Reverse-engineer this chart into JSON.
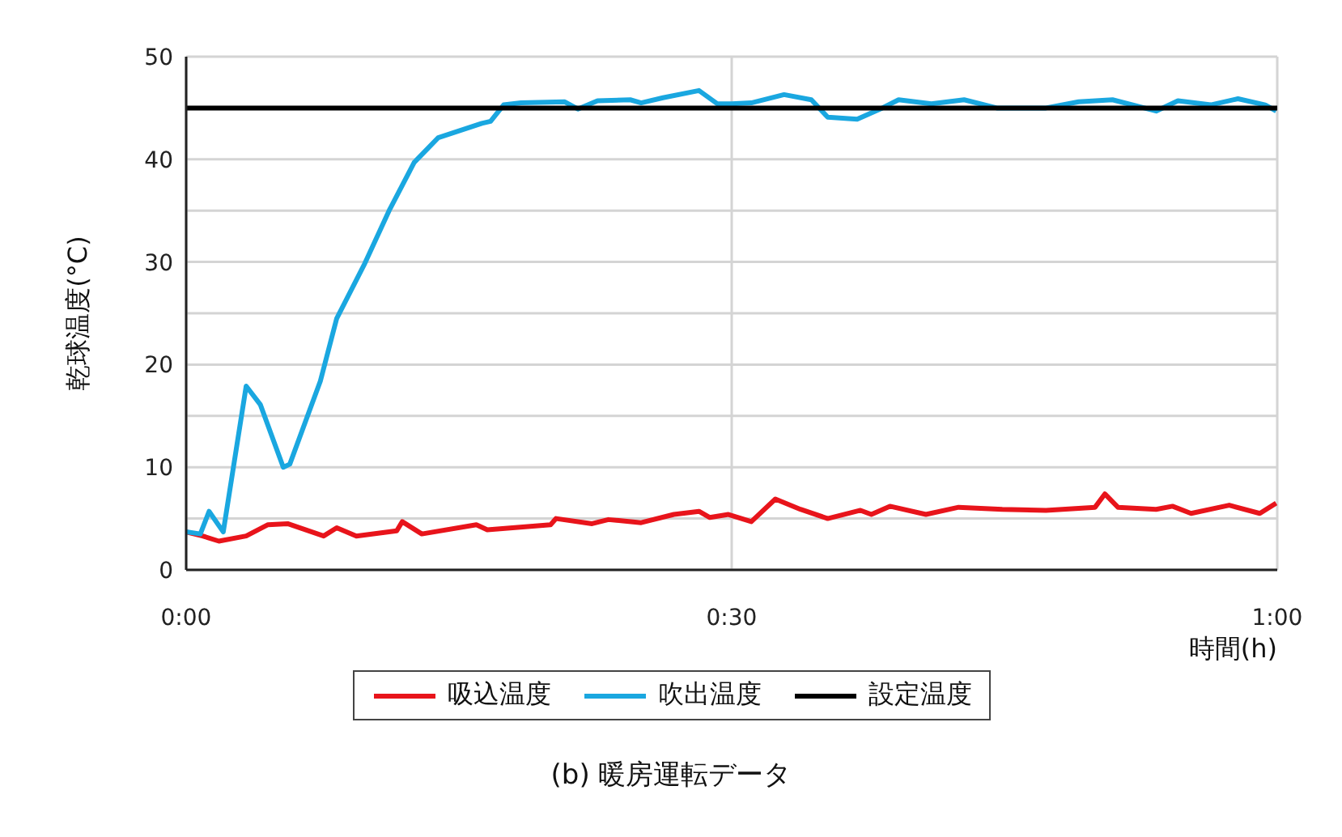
{
  "chart_data": {
    "type": "line",
    "title": "(b) 暖房運転データ",
    "xlabel": "時間(h)",
    "ylabel": "乾球温度(°C)",
    "xlim": [
      0,
      1
    ],
    "xticks": [
      {
        "value": 0,
        "label": "0:00"
      },
      {
        "value": 0.5,
        "label": "0:30"
      },
      {
        "value": 1,
        "label": "1:00"
      }
    ],
    "ylim": [
      0,
      50
    ],
    "yticks": [
      0,
      {
        "value": 5,
        "label": null
      },
      10,
      {
        "value": 15,
        "label": null
      },
      20,
      {
        "value": 25,
        "label": null
      },
      30,
      {
        "value": 35,
        "label": null
      },
      40,
      {
        "value": 45,
        "label": null
      },
      50
    ],
    "grid": true,
    "legend": "bottom",
    "line_style": "solid",
    "marker": "none",
    "series": [
      {
        "name": "吸込温度",
        "color": "#e8141b",
        "x": [
          0,
          0.015,
          0.03,
          0.055,
          0.075,
          0.093,
          0.126,
          0.138,
          0.156,
          0.193,
          0.198,
          0.216,
          0.266,
          0.276,
          0.334,
          0.339,
          0.372,
          0.387,
          0.417,
          0.447,
          0.47,
          0.48,
          0.497,
          0.518,
          0.54,
          0.563,
          0.588,
          0.618,
          0.628,
          0.645,
          0.678,
          0.708,
          0.748,
          0.788,
          0.833,
          0.842,
          0.854,
          0.889,
          0.904,
          0.921,
          0.956,
          0.984,
          0.999
        ],
        "values": [
          3.7,
          3.3,
          2.8,
          3.3,
          4.4,
          4.5,
          3.3,
          4.1,
          3.3,
          3.8,
          4.7,
          3.5,
          4.4,
          3.9,
          4.4,
          5.0,
          4.5,
          4.9,
          4.6,
          5.4,
          5.7,
          5.1,
          5.4,
          4.7,
          6.9,
          5.9,
          5.0,
          5.8,
          5.4,
          6.2,
          5.4,
          6.1,
          5.9,
          5.8,
          6.1,
          7.4,
          6.1,
          5.9,
          6.2,
          5.5,
          6.3,
          5.5,
          6.5
        ]
      },
      {
        "name": "吹出温度",
        "color": "#1aa7e0",
        "x": [
          0,
          0.013,
          0.021,
          0.034,
          0.055,
          0.068,
          0.089,
          0.095,
          0.123,
          0.138,
          0.163,
          0.186,
          0.209,
          0.231,
          0.271,
          0.279,
          0.291,
          0.307,
          0.347,
          0.359,
          0.377,
          0.407,
          0.417,
          0.437,
          0.47,
          0.487,
          0.5,
          0.518,
          0.548,
          0.573,
          0.588,
          0.615,
          0.638,
          0.653,
          0.683,
          0.713,
          0.743,
          0.788,
          0.818,
          0.849,
          0.889,
          0.909,
          0.939,
          0.964,
          0.989,
          0.999
        ],
        "values": [
          3.7,
          3.5,
          5.7,
          3.7,
          17.9,
          16.1,
          10.0,
          10.3,
          18.4,
          24.5,
          29.7,
          35.0,
          39.7,
          42.1,
          43.5,
          43.7,
          45.3,
          45.5,
          45.6,
          44.9,
          45.7,
          45.8,
          45.5,
          46.0,
          46.7,
          45.4,
          45.4,
          45.5,
          46.3,
          45.8,
          44.1,
          43.9,
          45.0,
          45.8,
          45.4,
          45.8,
          45.0,
          45.0,
          45.6,
          45.8,
          44.7,
          45.7,
          45.3,
          45.9,
          45.3,
          44.7
        ]
      },
      {
        "name": "設定温度",
        "color": "#000000",
        "x": [
          0,
          1
        ],
        "values": [
          45,
          45
        ]
      }
    ]
  }
}
